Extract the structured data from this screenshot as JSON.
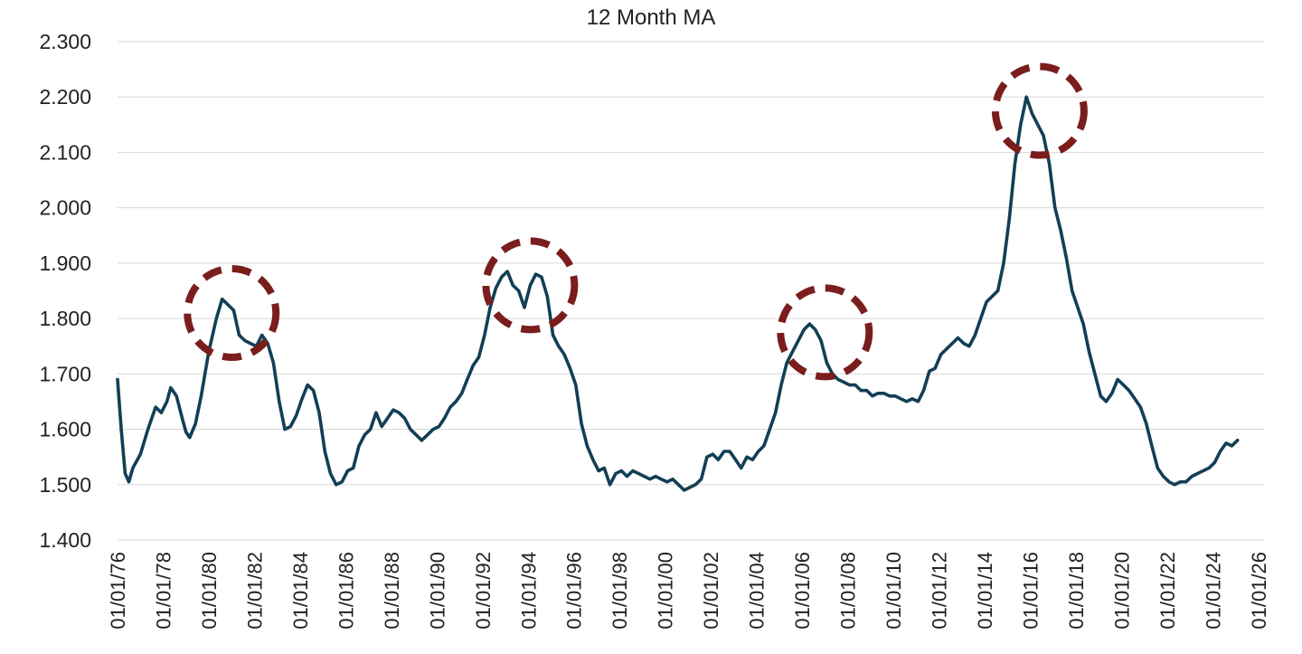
{
  "chart_data": {
    "type": "line",
    "title": "12 Month MA",
    "xlabel": "",
    "ylabel": "",
    "xlim": [
      "1976-01-01",
      "2026-04-01"
    ],
    "ylim": [
      1.4,
      2.3
    ],
    "grid": true,
    "legend": "none",
    "line_color": "#123f55",
    "highlight_color": "#7a1d1d",
    "y_ticks": [
      {
        "value": 1.4,
        "label": "1.400"
      },
      {
        "value": 1.5,
        "label": "1.500"
      },
      {
        "value": 1.6,
        "label": "1.600"
      },
      {
        "value": 1.7,
        "label": "1.700"
      },
      {
        "value": 1.8,
        "label": "1.800"
      },
      {
        "value": 1.9,
        "label": "1.900"
      },
      {
        "value": 2.0,
        "label": "2.000"
      },
      {
        "value": 2.1,
        "label": "2.100"
      },
      {
        "value": 2.2,
        "label": "2.200"
      },
      {
        "value": 2.3,
        "label": "2.300"
      }
    ],
    "x_ticks": [
      {
        "date": "1976-01-01",
        "label": "01/01/76"
      },
      {
        "date": "1978-01-01",
        "label": "01/01/78"
      },
      {
        "date": "1980-01-01",
        "label": "01/01/80"
      },
      {
        "date": "1982-01-01",
        "label": "01/01/82"
      },
      {
        "date": "1984-01-01",
        "label": "01/01/84"
      },
      {
        "date": "1986-01-01",
        "label": "01/01/86"
      },
      {
        "date": "1988-01-01",
        "label": "01/01/88"
      },
      {
        "date": "1990-01-01",
        "label": "01/01/90"
      },
      {
        "date": "1992-01-01",
        "label": "01/01/92"
      },
      {
        "date": "1994-01-01",
        "label": "01/01/94"
      },
      {
        "date": "1996-01-01",
        "label": "01/01/96"
      },
      {
        "date": "1998-01-01",
        "label": "01/01/98"
      },
      {
        "date": "2000-01-01",
        "label": "01/01/00"
      },
      {
        "date": "2002-01-01",
        "label": "01/01/02"
      },
      {
        "date": "2004-01-01",
        "label": "01/01/04"
      },
      {
        "date": "2006-01-01",
        "label": "01/01/06"
      },
      {
        "date": "2008-01-01",
        "label": "01/01/08"
      },
      {
        "date": "2010-01-01",
        "label": "01/01/10"
      },
      {
        "date": "2012-01-01",
        "label": "01/01/12"
      },
      {
        "date": "2014-01-01",
        "label": "01/01/14"
      },
      {
        "date": "2016-01-01",
        "label": "01/01/16"
      },
      {
        "date": "2018-01-01",
        "label": "01/01/18"
      },
      {
        "date": "2020-01-01",
        "label": "01/01/20"
      },
      {
        "date": "2022-01-01",
        "label": "01/01/22"
      },
      {
        "date": "2024-01-01",
        "label": "01/01/24"
      },
      {
        "date": "2026-01-01",
        "label": "01/01/26"
      }
    ],
    "series": [
      {
        "points": [
          [
            "1976-01-01",
            1.69
          ],
          [
            "1976-03-01",
            1.6
          ],
          [
            "1976-05-01",
            1.52
          ],
          [
            "1976-07-01",
            1.505
          ],
          [
            "1976-09-01",
            1.53
          ],
          [
            "1977-01-01",
            1.555
          ],
          [
            "1977-05-01",
            1.6
          ],
          [
            "1977-09-01",
            1.64
          ],
          [
            "1977-12-01",
            1.63
          ],
          [
            "1978-03-01",
            1.65
          ],
          [
            "1978-05-01",
            1.675
          ],
          [
            "1978-08-01",
            1.66
          ],
          [
            "1978-11-01",
            1.62
          ],
          [
            "1979-01-01",
            1.595
          ],
          [
            "1979-03-01",
            1.585
          ],
          [
            "1979-06-01",
            1.61
          ],
          [
            "1979-09-01",
            1.66
          ],
          [
            "1980-01-01",
            1.74
          ],
          [
            "1980-05-01",
            1.8
          ],
          [
            "1980-08-01",
            1.835
          ],
          [
            "1980-11-01",
            1.825
          ],
          [
            "1981-02-01",
            1.815
          ],
          [
            "1981-05-01",
            1.77
          ],
          [
            "1981-08-01",
            1.76
          ],
          [
            "1981-11-01",
            1.755
          ],
          [
            "1982-02-01",
            1.75
          ],
          [
            "1982-05-01",
            1.77
          ],
          [
            "1982-08-01",
            1.755
          ],
          [
            "1982-11-01",
            1.72
          ],
          [
            "1983-02-01",
            1.65
          ],
          [
            "1983-05-01",
            1.6
          ],
          [
            "1983-08-01",
            1.605
          ],
          [
            "1983-11-01",
            1.625
          ],
          [
            "1984-02-01",
            1.655
          ],
          [
            "1984-05-01",
            1.68
          ],
          [
            "1984-08-01",
            1.67
          ],
          [
            "1984-11-01",
            1.63
          ],
          [
            "1985-02-01",
            1.56
          ],
          [
            "1985-05-01",
            1.52
          ],
          [
            "1985-08-01",
            1.5
          ],
          [
            "1985-11-01",
            1.505
          ],
          [
            "1986-02-01",
            1.525
          ],
          [
            "1986-05-01",
            1.53
          ],
          [
            "1986-08-01",
            1.57
          ],
          [
            "1986-11-01",
            1.59
          ],
          [
            "1987-02-01",
            1.6
          ],
          [
            "1987-05-01",
            1.63
          ],
          [
            "1987-08-01",
            1.605
          ],
          [
            "1987-11-01",
            1.62
          ],
          [
            "1988-02-01",
            1.635
          ],
          [
            "1988-05-01",
            1.63
          ],
          [
            "1988-08-01",
            1.62
          ],
          [
            "1988-11-01",
            1.6
          ],
          [
            "1989-02-01",
            1.59
          ],
          [
            "1989-05-01",
            1.58
          ],
          [
            "1989-08-01",
            1.59
          ],
          [
            "1989-11-01",
            1.6
          ],
          [
            "1990-02-01",
            1.605
          ],
          [
            "1990-05-01",
            1.62
          ],
          [
            "1990-08-01",
            1.64
          ],
          [
            "1990-11-01",
            1.65
          ],
          [
            "1991-02-01",
            1.665
          ],
          [
            "1991-05-01",
            1.69
          ],
          [
            "1991-08-01",
            1.715
          ],
          [
            "1991-11-01",
            1.73
          ],
          [
            "1992-02-01",
            1.77
          ],
          [
            "1992-05-01",
            1.82
          ],
          [
            "1992-08-01",
            1.855
          ],
          [
            "1992-11-01",
            1.875
          ],
          [
            "1993-02-01",
            1.885
          ],
          [
            "1993-05-01",
            1.86
          ],
          [
            "1993-08-01",
            1.85
          ],
          [
            "1993-11-01",
            1.82
          ],
          [
            "1994-02-01",
            1.86
          ],
          [
            "1994-05-01",
            1.88
          ],
          [
            "1994-08-01",
            1.875
          ],
          [
            "1994-11-01",
            1.84
          ],
          [
            "1995-02-01",
            1.77
          ],
          [
            "1995-05-01",
            1.75
          ],
          [
            "1995-08-01",
            1.735
          ],
          [
            "1995-11-01",
            1.71
          ],
          [
            "1996-02-01",
            1.68
          ],
          [
            "1996-05-01",
            1.61
          ],
          [
            "1996-08-01",
            1.57
          ],
          [
            "1996-11-01",
            1.545
          ],
          [
            "1997-02-01",
            1.525
          ],
          [
            "1997-05-01",
            1.53
          ],
          [
            "1997-08-01",
            1.5
          ],
          [
            "1997-11-01",
            1.52
          ],
          [
            "1998-02-01",
            1.525
          ],
          [
            "1998-05-01",
            1.515
          ],
          [
            "1998-08-01",
            1.525
          ],
          [
            "1998-11-01",
            1.52
          ],
          [
            "1999-02-01",
            1.515
          ],
          [
            "1999-05-01",
            1.51
          ],
          [
            "1999-08-01",
            1.515
          ],
          [
            "1999-11-01",
            1.51
          ],
          [
            "2000-02-01",
            1.505
          ],
          [
            "2000-05-01",
            1.51
          ],
          [
            "2000-08-01",
            1.5
          ],
          [
            "2000-11-01",
            1.49
          ],
          [
            "2001-02-01",
            1.495
          ],
          [
            "2001-05-01",
            1.5
          ],
          [
            "2001-08-01",
            1.51
          ],
          [
            "2001-11-01",
            1.55
          ],
          [
            "2002-02-01",
            1.555
          ],
          [
            "2002-05-01",
            1.545
          ],
          [
            "2002-08-01",
            1.56
          ],
          [
            "2002-11-01",
            1.56
          ],
          [
            "2003-02-01",
            1.545
          ],
          [
            "2003-05-01",
            1.53
          ],
          [
            "2003-08-01",
            1.55
          ],
          [
            "2003-11-01",
            1.545
          ],
          [
            "2004-02-01",
            1.56
          ],
          [
            "2004-05-01",
            1.57
          ],
          [
            "2004-08-01",
            1.6
          ],
          [
            "2004-11-01",
            1.63
          ],
          [
            "2005-02-01",
            1.68
          ],
          [
            "2005-05-01",
            1.72
          ],
          [
            "2005-08-01",
            1.74
          ],
          [
            "2005-11-01",
            1.76
          ],
          [
            "2006-02-01",
            1.78
          ],
          [
            "2006-05-01",
            1.79
          ],
          [
            "2006-08-01",
            1.78
          ],
          [
            "2006-11-01",
            1.76
          ],
          [
            "2007-02-01",
            1.72
          ],
          [
            "2007-05-01",
            1.7
          ],
          [
            "2007-08-01",
            1.69
          ],
          [
            "2007-11-01",
            1.685
          ],
          [
            "2008-02-01",
            1.68
          ],
          [
            "2008-05-01",
            1.68
          ],
          [
            "2008-08-01",
            1.67
          ],
          [
            "2008-11-01",
            1.67
          ],
          [
            "2009-02-01",
            1.66
          ],
          [
            "2009-05-01",
            1.665
          ],
          [
            "2009-08-01",
            1.665
          ],
          [
            "2009-11-01",
            1.66
          ],
          [
            "2010-02-01",
            1.66
          ],
          [
            "2010-05-01",
            1.655
          ],
          [
            "2010-08-01",
            1.65
          ],
          [
            "2010-11-01",
            1.655
          ],
          [
            "2011-02-01",
            1.65
          ],
          [
            "2011-05-01",
            1.67
          ],
          [
            "2011-08-01",
            1.705
          ],
          [
            "2011-11-01",
            1.71
          ],
          [
            "2012-02-01",
            1.735
          ],
          [
            "2012-05-01",
            1.745
          ],
          [
            "2012-08-01",
            1.755
          ],
          [
            "2012-11-01",
            1.765
          ],
          [
            "2013-02-01",
            1.755
          ],
          [
            "2013-05-01",
            1.75
          ],
          [
            "2013-08-01",
            1.77
          ],
          [
            "2013-11-01",
            1.8
          ],
          [
            "2014-02-01",
            1.83
          ],
          [
            "2014-05-01",
            1.84
          ],
          [
            "2014-08-01",
            1.85
          ],
          [
            "2014-11-01",
            1.9
          ],
          [
            "2015-02-01",
            1.98
          ],
          [
            "2015-05-01",
            2.08
          ],
          [
            "2015-08-01",
            2.15
          ],
          [
            "2015-11-01",
            2.2
          ],
          [
            "2016-02-01",
            2.17
          ],
          [
            "2016-05-01",
            2.15
          ],
          [
            "2016-08-01",
            2.13
          ],
          [
            "2016-11-01",
            2.08
          ],
          [
            "2017-02-01",
            2.0
          ],
          [
            "2017-05-01",
            1.96
          ],
          [
            "2017-08-01",
            1.91
          ],
          [
            "2017-11-01",
            1.85
          ],
          [
            "2018-02-01",
            1.82
          ],
          [
            "2018-05-01",
            1.79
          ],
          [
            "2018-08-01",
            1.74
          ],
          [
            "2018-11-01",
            1.7
          ],
          [
            "2019-02-01",
            1.66
          ],
          [
            "2019-05-01",
            1.65
          ],
          [
            "2019-08-01",
            1.665
          ],
          [
            "2019-11-01",
            1.69
          ],
          [
            "2020-02-01",
            1.68
          ],
          [
            "2020-05-01",
            1.67
          ],
          [
            "2020-08-01",
            1.655
          ],
          [
            "2020-11-01",
            1.64
          ],
          [
            "2021-02-01",
            1.61
          ],
          [
            "2021-05-01",
            1.57
          ],
          [
            "2021-08-01",
            1.53
          ],
          [
            "2021-11-01",
            1.515
          ],
          [
            "2022-02-01",
            1.505
          ],
          [
            "2022-05-01",
            1.5
          ],
          [
            "2022-08-01",
            1.505
          ],
          [
            "2022-11-01",
            1.505
          ],
          [
            "2023-02-01",
            1.515
          ],
          [
            "2023-05-01",
            1.52
          ],
          [
            "2023-08-01",
            1.525
          ],
          [
            "2023-11-01",
            1.53
          ],
          [
            "2024-02-01",
            1.54
          ],
          [
            "2024-05-01",
            1.56
          ],
          [
            "2024-08-01",
            1.575
          ],
          [
            "2024-11-01",
            1.57
          ],
          [
            "2025-02-01",
            1.58
          ]
        ]
      }
    ],
    "highlights": [
      {
        "date": "1981-01-01",
        "value": 1.81
      },
      {
        "date": "1994-02-01",
        "value": 1.86
      },
      {
        "date": "2007-01-01",
        "value": 1.775
      },
      {
        "date": "2016-06-01",
        "value": 2.175
      }
    ]
  }
}
